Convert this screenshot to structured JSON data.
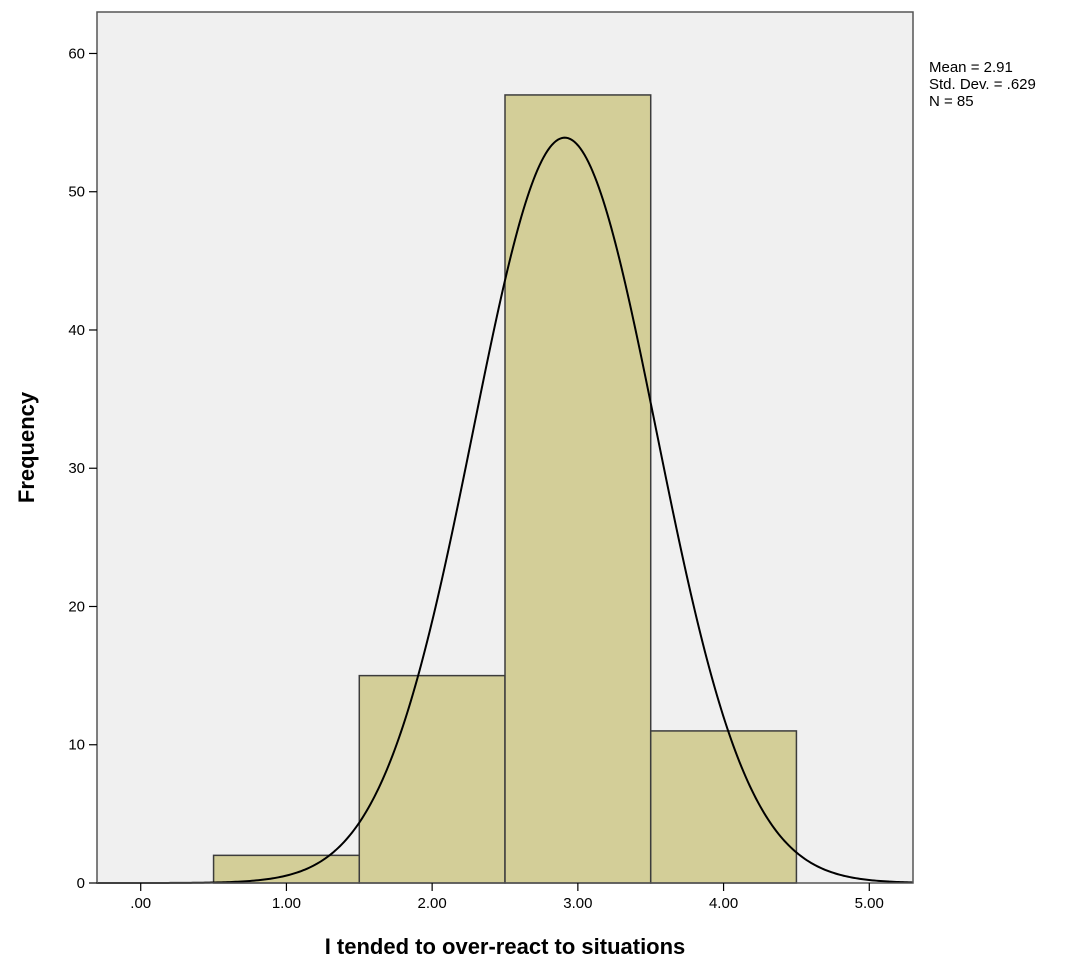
{
  "chart_data": {
    "type": "bar",
    "histogram": true,
    "xlabel": "I tended to over-react to situations",
    "ylabel": "Frequency",
    "x_ticks": [
      0,
      1,
      2,
      3,
      4,
      5
    ],
    "x_tick_labels": [
      ".00",
      "1.00",
      "2.00",
      "3.00",
      "4.00",
      "5.00"
    ],
    "y_ticks": [
      0,
      10,
      20,
      30,
      40,
      50,
      60
    ],
    "y_tick_labels": [
      "0",
      "10",
      "20",
      "30",
      "40",
      "50",
      "60"
    ],
    "xlim": [
      -0.3,
      5.3
    ],
    "ylim": [
      0,
      63
    ],
    "bins": [
      {
        "x_start": 0.5,
        "x_end": 1.5,
        "count": 2
      },
      {
        "x_start": 1.5,
        "x_end": 2.5,
        "count": 15
      },
      {
        "x_start": 2.5,
        "x_end": 3.5,
        "count": 57
      },
      {
        "x_start": 3.5,
        "x_end": 4.5,
        "count": 11
      }
    ],
    "normal_curve": {
      "mean": 2.91,
      "std_dev": 0.629,
      "n": 85,
      "bin_width": 1
    },
    "stats": [
      "Mean = 2.91",
      "Std. Dev. = .629",
      "N = 85"
    ],
    "grid": false,
    "colors": {
      "plot_background": "#f0f0f0",
      "bar_fill": "#d3ce98",
      "bar_stroke": "#3c3c3c",
      "curve": "#000000"
    }
  }
}
